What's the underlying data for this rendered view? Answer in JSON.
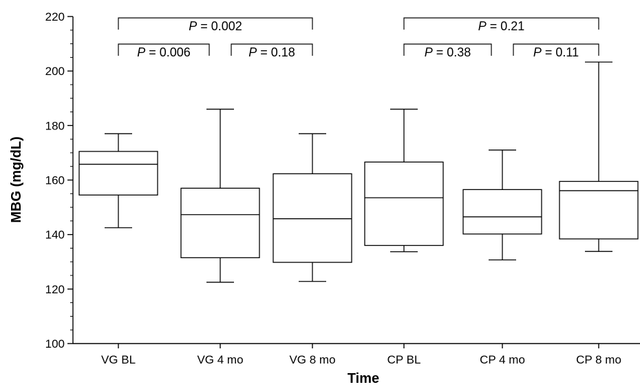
{
  "chart_data": {
    "type": "box",
    "title": "",
    "xlabel": "Time",
    "ylabel": "MBG (mg/dL)",
    "ylim": [
      100,
      220
    ],
    "y_ticks": [
      100,
      120,
      140,
      160,
      180,
      200,
      220
    ],
    "categories": [
      "VG BL",
      "VG 4 mo",
      "VG 8 mo",
      "CP BL",
      "CP 4 mo",
      "CP 8 mo"
    ],
    "boxes": [
      {
        "category": "VG BL",
        "whisker_low": 142.5,
        "q1": 154.5,
        "median": 165.8,
        "q3": 170.5,
        "whisker_high": 177
      },
      {
        "category": "VG 4 mo",
        "whisker_low": 122.5,
        "q1": 131.5,
        "median": 147.3,
        "q3": 157.0,
        "whisker_high": 186
      },
      {
        "category": "VG 8 mo",
        "whisker_low": 122.8,
        "q1": 129.8,
        "median": 145.8,
        "q3": 162.3,
        "whisker_high": 177
      },
      {
        "category": "CP BL",
        "whisker_low": 133.7,
        "q1": 136.0,
        "median": 153.5,
        "q3": 166.6,
        "whisker_high": 186
      },
      {
        "category": "CP 4 mo",
        "whisker_low": 130.7,
        "q1": 140.2,
        "median": 146.5,
        "q3": 156.5,
        "whisker_high": 171
      },
      {
        "category": "CP 8 mo",
        "whisker_low": 133.8,
        "q1": 138.4,
        "median": 156.1,
        "q3": 159.5,
        "whisker_high": 203.3
      }
    ],
    "comparisons": [
      {
        "from": "VG BL",
        "to": "VG 8 mo",
        "p_symbol": "P",
        "p_value": "= 0.002",
        "level": "upper"
      },
      {
        "from": "VG BL",
        "to": "VG 4 mo",
        "p_symbol": "P",
        "p_value": "= 0.006",
        "level": "lower"
      },
      {
        "from": "VG 4 mo",
        "to": "VG 8 mo",
        "p_symbol": "P",
        "p_value": "= 0.18",
        "level": "lower"
      },
      {
        "from": "CP BL",
        "to": "CP 8 mo",
        "p_symbol": "P",
        "p_value": "= 0.21",
        "level": "upper"
      },
      {
        "from": "CP BL",
        "to": "CP 4 mo",
        "p_symbol": "P",
        "p_value": "= 0.38",
        "level": "lower"
      },
      {
        "from": "CP 4 mo",
        "to": "CP 8 mo",
        "p_symbol": "P",
        "p_value": "= 0.11",
        "level": "lower"
      }
    ],
    "grid": false
  }
}
